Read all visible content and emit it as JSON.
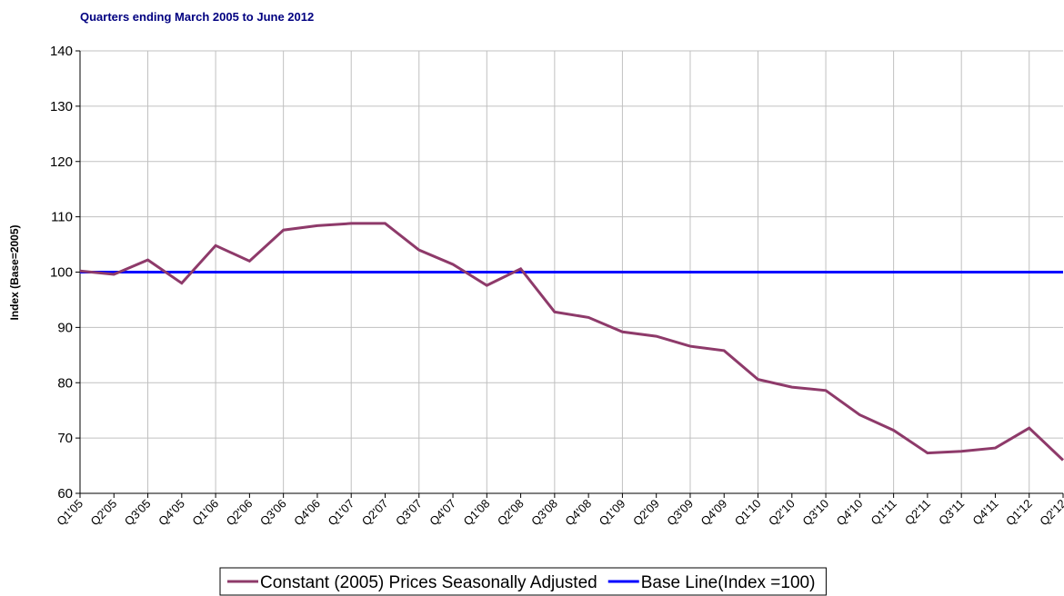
{
  "chart_data": {
    "type": "line",
    "title": "Quarters ending March 2005 to June 2012",
    "y_label": "Index (Base=2005)",
    "categories": [
      "Q1'05",
      "Q2'05",
      "Q3'05",
      "Q4'05",
      "Q1'06",
      "Q2'06",
      "Q3'06",
      "Q4'06",
      "Q1'07",
      "Q2'07",
      "Q3'07",
      "Q4'07",
      "Q1'08",
      "Q2'08",
      "Q3'08",
      "Q4'08",
      "Q1'09",
      "Q2'09",
      "Q3'09",
      "Q4'09",
      "Q1'10",
      "Q2'10",
      "Q3'10",
      "Q4'10",
      "Q1'11",
      "Q2'11",
      "Q3'11",
      "Q4'11",
      "Q1'12",
      "Q2'12"
    ],
    "series": [
      {
        "name": "Constant (2005) Prices Seasonally Adjusted",
        "color": "#8e3a6a",
        "values": [
          100.2,
          99.6,
          102.2,
          98.0,
          104.8,
          102.0,
          107.6,
          108.4,
          108.8,
          108.8,
          104.0,
          101.4,
          97.6,
          100.6,
          92.8,
          91.8,
          89.2,
          88.4,
          86.6,
          85.8,
          80.6,
          79.2,
          78.6,
          74.2,
          71.4,
          67.3,
          67.6,
          68.2,
          71.8,
          66.0
        ]
      },
      {
        "name": "Base Line(Index =100)",
        "color": "#0000ff",
        "values": [
          100,
          100,
          100,
          100,
          100,
          100,
          100,
          100,
          100,
          100,
          100,
          100,
          100,
          100,
          100,
          100,
          100,
          100,
          100,
          100,
          100,
          100,
          100,
          100,
          100,
          100,
          100,
          100,
          100,
          100
        ]
      }
    ],
    "ylim": [
      60,
      140
    ],
    "yticks": [
      60,
      70,
      80,
      90,
      100,
      110,
      120,
      130,
      140
    ],
    "grid": true,
    "legend": "bottom"
  }
}
